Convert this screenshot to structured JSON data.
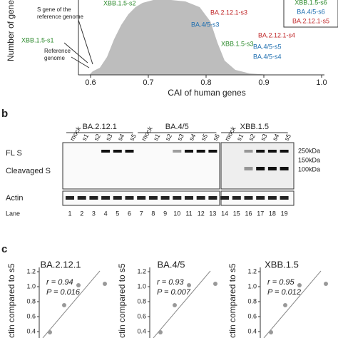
{
  "panel_a": {
    "y_label": "Number of genes",
    "x_label": "CAI of human genes",
    "x_ticks": [
      "0.6",
      "0.7",
      "0.8",
      "0.9",
      "1.0"
    ],
    "annotations": [
      {
        "text": "S gene of the",
        "color": "k"
      },
      {
        "text": "reference genome",
        "color": "k"
      },
      {
        "text": "XBB.1.5-s1",
        "color": "g"
      },
      {
        "text": "Reference",
        "color": "k"
      },
      {
        "text": "genome",
        "color": "k"
      },
      {
        "text": "XBB.1.5-s2",
        "color": "g"
      },
      {
        "text": "BA.2.12.1-s3",
        "color": "r"
      },
      {
        "text": "BA.4/5-s3",
        "color": "bl"
      },
      {
        "text": "BA.2.12.1-s4",
        "color": "r"
      },
      {
        "text": "XBB.1.5-s3",
        "color": "g"
      },
      {
        "text": "BA.4/5-s5",
        "color": "bl"
      },
      {
        "text": "BA.4/5-s4",
        "color": "bl"
      },
      {
        "text": "XBB.1.5-s6",
        "color": "g"
      },
      {
        "text": "BA.4/5-s6",
        "color": "bl"
      },
      {
        "text": "BA.2.12.1-s5",
        "color": "r"
      }
    ]
  },
  "panel_b": {
    "letter": "b",
    "groups": [
      "BA.2.12.1",
      "BA.4/5",
      "XBB.1.5"
    ],
    "lane_labels": [
      "mock",
      "s1",
      "s2",
      "s3",
      "s4",
      "s5",
      "mock",
      "s1",
      "s2",
      "s3",
      "s4",
      "s5",
      "s6",
      "mock",
      "s1",
      "s2",
      "s3",
      "s4",
      "s5"
    ],
    "row_labels": [
      "FL S",
      "Cleavaged S",
      "Actin",
      "Lane"
    ],
    "markers": [
      "250kDa",
      "150kDa",
      "100kDa"
    ],
    "lanes": [
      "1",
      "2",
      "3",
      "4",
      "5",
      "6",
      "7",
      "8",
      "9",
      "10",
      "11",
      "12",
      "13",
      "14",
      "15",
      "16",
      "17",
      "18",
      "19"
    ]
  },
  "panel_c": {
    "letter": "c",
    "y_label": "ctin compared to s5",
    "y_ticks": [
      "1.2",
      "1.0",
      "0.8",
      "0.6",
      "0.4"
    ],
    "plots": [
      {
        "title": "BA.2.12.1",
        "r": "r = 0.94",
        "p": "P = 0.016"
      },
      {
        "title": "BA.4/5",
        "r": "r = 0.93",
        "p": "P = 0.007"
      },
      {
        "title": "XBB.1.5",
        "r": "r = 0.95",
        "p": "P = 0.012"
      }
    ]
  }
}
